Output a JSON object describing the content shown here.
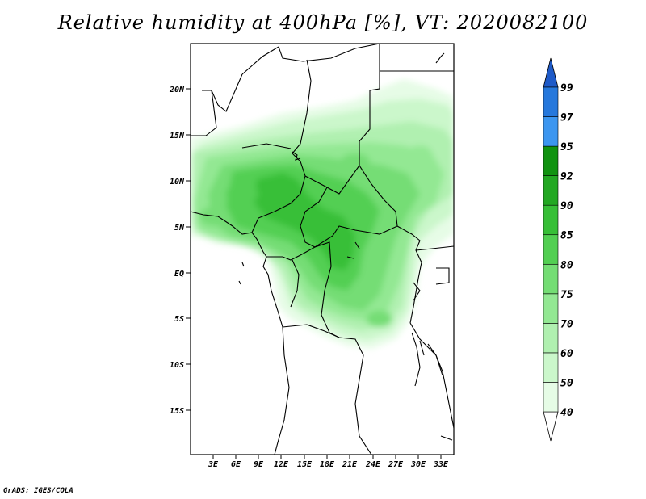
{
  "title": "Relative humidity at 400hPa [%], VT: 2020082100",
  "footer": "GrADS: IGES/COLA",
  "map": {
    "lat_ticks": [
      "20N",
      "15N",
      "10N",
      "5N",
      "EQ",
      "5S",
      "10S",
      "15S"
    ],
    "lon_ticks": [
      "3E",
      "6E",
      "9E",
      "12E",
      "15E",
      "18E",
      "21E",
      "24E",
      "27E",
      "30E",
      "33E"
    ]
  },
  "colorbar": {
    "levels": [
      "40",
      "50",
      "60",
      "70",
      "75",
      "80",
      "85",
      "90",
      "92",
      "95",
      "97",
      "99"
    ],
    "colors": [
      "#ffffff",
      "#e6fce6",
      "#cbf7cb",
      "#b0f0b0",
      "#93e893",
      "#74dd74",
      "#52cf52",
      "#37bf37",
      "#23a823",
      "#119311",
      "#3c96f0",
      "#2678dc",
      "#1e5ac8"
    ]
  }
}
